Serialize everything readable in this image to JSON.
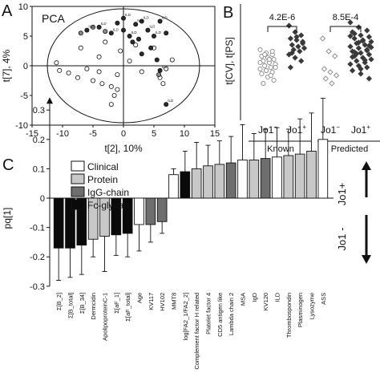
{
  "panel_letters": {
    "a": "A",
    "b": "B",
    "c": "C"
  },
  "colors": {
    "clinical": "#ffffff",
    "protein": "#c8c8c8",
    "igg": "#6e6e6e",
    "fc": "#0a0a0a",
    "outline": "#111111",
    "grid": "#000000"
  },
  "chart_data": [
    {
      "panel": "A",
      "type": "scatter",
      "title": "PCA",
      "xlabel": "t[2], 10%",
      "ylabel": "t[7], 4%",
      "xlim": [
        -15,
        15
      ],
      "ylim": [
        -10,
        10
      ],
      "xticks": [
        "-15",
        "-10",
        "-5",
        "0",
        "5",
        "10",
        "15"
      ],
      "yticks": [
        "-10",
        "-5",
        "0",
        "5",
        "10"
      ],
      "point_label": "ILD",
      "series": [
        {
          "marker": "open",
          "points": [
            [
              -11,
              0.5
            ],
            [
              -10.5,
              -0.8
            ],
            [
              -9,
              -1.2
            ],
            [
              -7.5,
              -2
            ],
            [
              -6,
              -0.5
            ],
            [
              -5,
              -2.5
            ],
            [
              -4,
              -1
            ],
            [
              -3.5,
              -3
            ],
            [
              -2,
              -3.5
            ],
            [
              -1.5,
              -5
            ],
            [
              -1,
              -1.5
            ],
            [
              -0.5,
              2.5
            ],
            [
              1,
              0.8
            ],
            [
              2,
              3.5
            ],
            [
              3,
              -1
            ],
            [
              -4,
              1.5
            ],
            [
              -7,
              3
            ],
            [
              -3,
              4
            ],
            [
              6,
              -2
            ],
            [
              6.5,
              -3
            ],
            [
              7,
              -0.5
            ],
            [
              5,
              3
            ],
            [
              -2,
              -6.5
            ],
            [
              -1,
              -4
            ],
            [
              8,
              1
            ]
          ]
        },
        {
          "marker": "filled",
          "points": [
            [
              -6,
              6
            ],
            [
              -4,
              6.5
            ],
            [
              -2,
              5.5
            ],
            [
              0,
              8
            ],
            [
              0,
              6
            ],
            [
              1,
              5
            ],
            [
              2,
              7
            ],
            [
              2.5,
              4.5
            ],
            [
              3,
              7.5
            ],
            [
              4,
              6
            ],
            [
              5,
              5
            ],
            [
              4.5,
              3
            ],
            [
              6,
              7.5
            ],
            [
              7,
              5.5
            ],
            [
              3,
              2
            ],
            [
              1.5,
              4
            ],
            [
              -1,
              7.2
            ],
            [
              5.5,
              1
            ],
            [
              6,
              -0.8
            ],
            [
              7,
              -6.5
            ]
          ]
        },
        {
          "marker": "gray",
          "points": [
            [
              -7,
              5.5
            ],
            [
              -5,
              6.5
            ],
            [
              -3,
              5.8
            ],
            [
              5.8,
              -1.5
            ]
          ]
        }
      ],
      "labeled_points": [
        [
          -6,
          6
        ],
        [
          -4,
          6.5
        ],
        [
          -2,
          5.5
        ],
        [
          0,
          8
        ],
        [
          1,
          5
        ],
        [
          2,
          7
        ],
        [
          3,
          7.5
        ],
        [
          4,
          6
        ],
        [
          5,
          5
        ],
        [
          6,
          7.5
        ],
        [
          6,
          -0.8
        ],
        [
          7,
          -6.5
        ]
      ]
    },
    {
      "panel": "B",
      "type": "scatter",
      "ylabel": "t[CV], t[PS]",
      "groups": [
        {
          "label": "Jo1",
          "sup": "−",
          "marker": "open-circle",
          "values": [
            0.9,
            0.7,
            0.6,
            0.5,
            0.4,
            0.3,
            0.2,
            0.1,
            0.0,
            -0.1,
            -0.2,
            -0.3,
            -0.4,
            -0.5,
            -0.6,
            -0.8,
            -1.0,
            -1.2,
            0.3,
            -0.2,
            0.6,
            -0.7,
            0.1,
            -0.4,
            0.8
          ]
        },
        {
          "label": "Jo1",
          "sup": "+",
          "marker": "filled-diamond",
          "values": [
            2.4,
            2.0,
            1.8,
            1.6,
            1.5,
            1.3,
            1.2,
            1.1,
            1.0,
            0.9,
            0.8,
            0.6,
            0.4,
            0.2,
            -0.2,
            1.7,
            1.4,
            0.7
          ]
        },
        {
          "label": "Jo1",
          "sup": "−",
          "marker": "open-diamond",
          "values": [
            1.6,
            0.8,
            0.5,
            -0.3,
            -0.5,
            -0.7,
            -0.9,
            -1.2
          ]
        },
        {
          "label": "Jo1",
          "sup": "+",
          "marker": "filled-diamond",
          "values": [
            2.6,
            2.3,
            2.1,
            2.0,
            1.8,
            1.7,
            1.6,
            1.5,
            1.4,
            1.3,
            1.2,
            1.1,
            1.0,
            0.9,
            0.8,
            0.7,
            0.6,
            0.5,
            0.4,
            0.3,
            0.2,
            0.1,
            0.0,
            -0.1,
            -0.2,
            -0.4,
            -0.6,
            -0.9,
            1.9,
            1.45,
            1.05,
            0.65,
            0.25,
            1.75,
            1.35,
            0.85,
            0.45,
            -0.3,
            1.15,
            0.75
          ]
        }
      ],
      "ylim": [
        -3.5,
        3.5
      ],
      "p_values": [
        "4.2E-6",
        "8.5E-4"
      ],
      "group_labels": [
        "Known",
        "Predicted"
      ]
    },
    {
      "panel": "C",
      "type": "bar",
      "ylabel": "pq[1]",
      "ylim": [
        -0.3,
        0.3
      ],
      "yticks": [
        "-0.3",
        "-0.2",
        "-0.1",
        "0",
        "0.1",
        "0.2",
        "0.3"
      ],
      "legend": [
        {
          "key": "clinical",
          "label": "Clinical"
        },
        {
          "key": "protein",
          "label": "Protein"
        },
        {
          "key": "igg",
          "label": "IgG-chain"
        },
        {
          "key": "fc",
          "label": "Fc-glycan"
        }
      ],
      "side_labels": {
        "positive": "Jo1+",
        "negative": "Jo1 -"
      },
      "categories": [
        "Σ[B_2]",
        "Σ[B_total]",
        "Σ[B_34]",
        "Dermcidin",
        "ApolipoproteinC-1",
        "Σ[aF_1]",
        "Σ[aF_total]",
        "Age",
        "KV117",
        "HV102",
        "MMT8",
        "log[FA2_1/FA2_2]",
        "Complement factor H related",
        "Platelet factor 4",
        "CD5 antigen like",
        "Lambda chain 2",
        "MSA",
        "IgD",
        "KV120",
        "ILD",
        "Thrombospondin",
        "Plasminogen",
        "Lysozyme",
        "ASS"
      ],
      "values": [
        -0.17,
        -0.17,
        -0.16,
        -0.14,
        -0.13,
        -0.125,
        -0.12,
        -0.09,
        -0.09,
        -0.08,
        0.08,
        0.09,
        0.1,
        0.11,
        0.115,
        0.12,
        0.13,
        0.13,
        0.135,
        0.14,
        0.145,
        0.15,
        0.16,
        0.2
      ],
      "errors": [
        0.11,
        0.1,
        0.1,
        0.06,
        0.12,
        0.07,
        0.08,
        0.09,
        0.06,
        0.04,
        0.02,
        0.07,
        0.09,
        0.07,
        0.08,
        0.09,
        0.12,
        0.09,
        0.1,
        0.1,
        0.09,
        0.12,
        0.13,
        0.14
      ],
      "kinds": [
        "fc",
        "fc",
        "fc",
        "protein",
        "protein",
        "fc",
        "fc",
        "clinical",
        "igg",
        "igg",
        "clinical",
        "fc",
        "protein",
        "protein",
        "protein",
        "igg",
        "clinical",
        "protein",
        "igg",
        "clinical",
        "protein",
        "protein",
        "protein",
        "clinical"
      ]
    }
  ]
}
